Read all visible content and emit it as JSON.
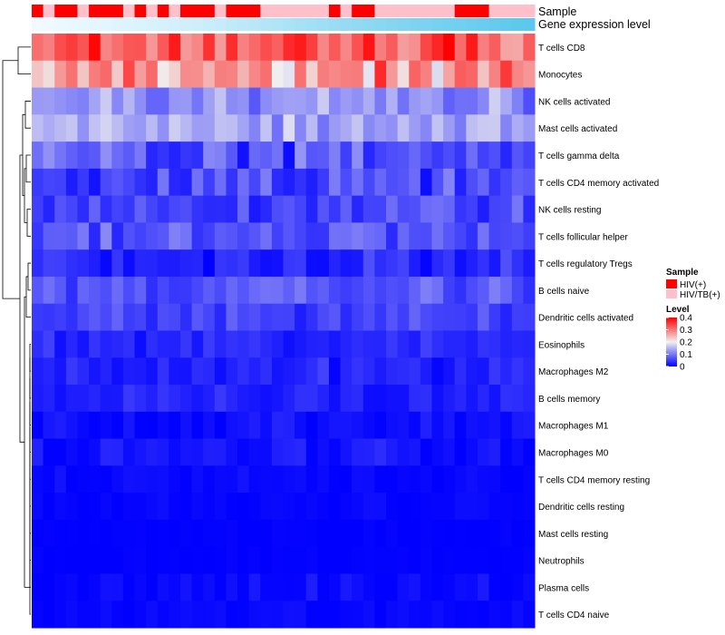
{
  "chart_data": {
    "type": "heatmap",
    "title": "",
    "annotation_labels": {
      "sample": "Sample",
      "expression": "Gene expression level"
    },
    "rows": [
      "T cells CD8",
      "Monocytes",
      "NK cells activated",
      "Mast cells activated",
      "T cells gamma delta",
      "T cells CD4 memory activated",
      "NK cells resting",
      "T cells follicular helper",
      "T cells regulatory  Tregs",
      "B cells naive",
      "Dendritic cells activated",
      "Eosinophils",
      "Macrophages M2",
      "B cells memory",
      "Macrophages M1",
      "Macrophages M0",
      "T cells CD4 memory resting",
      "Dendritic cells resting",
      "Mast cells resting",
      "Neutrophils",
      "Plasma cells",
      "T cells CD4 naive"
    ],
    "n_columns": 44,
    "sample_groups": [
      "HIV(+)",
      "HIV/TB(+)"
    ],
    "sample_pattern": [
      0,
      1,
      0,
      0,
      1,
      0,
      0,
      0,
      1,
      0,
      1,
      0,
      1,
      0,
      0,
      0,
      1,
      0,
      0,
      0,
      1,
      1,
      1,
      1,
      1,
      1,
      0,
      1,
      0,
      0,
      1,
      1,
      1,
      1,
      1,
      1,
      1,
      0,
      0,
      0,
      1,
      1,
      1,
      1
    ],
    "sample_colors": {
      "HIV(+)": "#ff0000",
      "HIV/TB(+)": "#ffc0cb"
    },
    "expression_gradient": [
      "#f0fbff",
      "#cdeefb",
      "#8fd8f2",
      "#5bc8ec"
    ],
    "value_range": [
      0,
      0.4
    ],
    "row_means": [
      0.33,
      0.27,
      0.12,
      0.14,
      0.07,
      0.06,
      0.06,
      0.07,
      0.03,
      0.07,
      0.055,
      0.03,
      0.03,
      0.03,
      0.012,
      0.015,
      0.006,
      0.004,
      0.001,
      0.001,
      0.008,
      0.005
    ],
    "row_spread": [
      0.1,
      0.11,
      0.06,
      0.06,
      0.07,
      0.06,
      0.05,
      0.05,
      0.04,
      0.04,
      0.035,
      0.03,
      0.03,
      0.03,
      0.02,
      0.025,
      0.012,
      0.01,
      0.004,
      0.004,
      0.02,
      0.012
    ],
    "color_scale": {
      "low": "#0000ff",
      "mid": "#f0f0f0",
      "high": "#ff0000",
      "mid_value": 0.2
    },
    "legend": {
      "sample_title": "Sample",
      "sample_entries": [
        "HIV(+)",
        "HIV/TB(+)"
      ],
      "level_title": "Level",
      "level_ticks": [
        "0.4",
        "0.3",
        "0.2",
        "0.1",
        "0"
      ],
      "level_tick_values": [
        0.4,
        0.3,
        0.2,
        0.1,
        0
      ],
      "placement": "right"
    }
  }
}
